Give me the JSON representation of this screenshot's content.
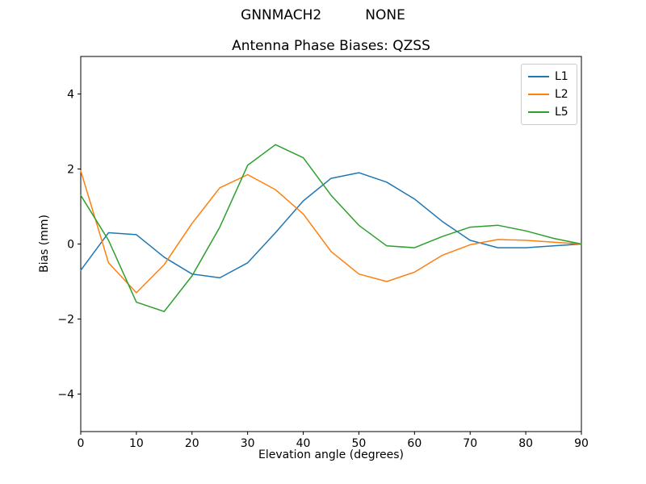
{
  "chart_data": {
    "type": "line",
    "suptitle": "GNNMACH2          NONE",
    "title": "Antenna Phase Biases: QZSS",
    "xlabel": "Elevation angle (degrees)",
    "ylabel": "Bias (mm)",
    "xlim": [
      0,
      90
    ],
    "ylim": [
      -5,
      5
    ],
    "xticks": [
      0,
      10,
      20,
      30,
      40,
      50,
      60,
      70,
      80,
      90
    ],
    "yticks": [
      -4,
      -2,
      0,
      2,
      4
    ],
    "grid": false,
    "legend_position": "upper right",
    "x": [
      0,
      5,
      10,
      15,
      20,
      25,
      30,
      35,
      40,
      45,
      50,
      55,
      60,
      65,
      70,
      75,
      80,
      85,
      90
    ],
    "series": [
      {
        "name": "L1",
        "color": "#1f77b4",
        "values": [
          -0.7,
          0.3,
          0.25,
          -0.35,
          -0.8,
          -0.9,
          -0.5,
          0.3,
          1.15,
          1.75,
          1.9,
          1.65,
          1.2,
          0.6,
          0.1,
          -0.1,
          -0.1,
          -0.05,
          0.0
        ]
      },
      {
        "name": "L2",
        "color": "#ff7f0e",
        "values": [
          1.95,
          -0.5,
          -1.3,
          -0.55,
          0.55,
          1.5,
          1.85,
          1.45,
          0.8,
          -0.2,
          -0.8,
          -1.0,
          -0.75,
          -0.3,
          -0.02,
          0.12,
          0.1,
          0.05,
          0.0
        ]
      },
      {
        "name": "L5",
        "color": "#2ca02c",
        "values": [
          1.3,
          0.1,
          -1.55,
          -1.8,
          -0.85,
          0.45,
          2.1,
          2.65,
          2.3,
          1.3,
          0.5,
          -0.05,
          -0.1,
          0.2,
          0.45,
          0.5,
          0.35,
          0.15,
          0.0
        ]
      }
    ]
  }
}
